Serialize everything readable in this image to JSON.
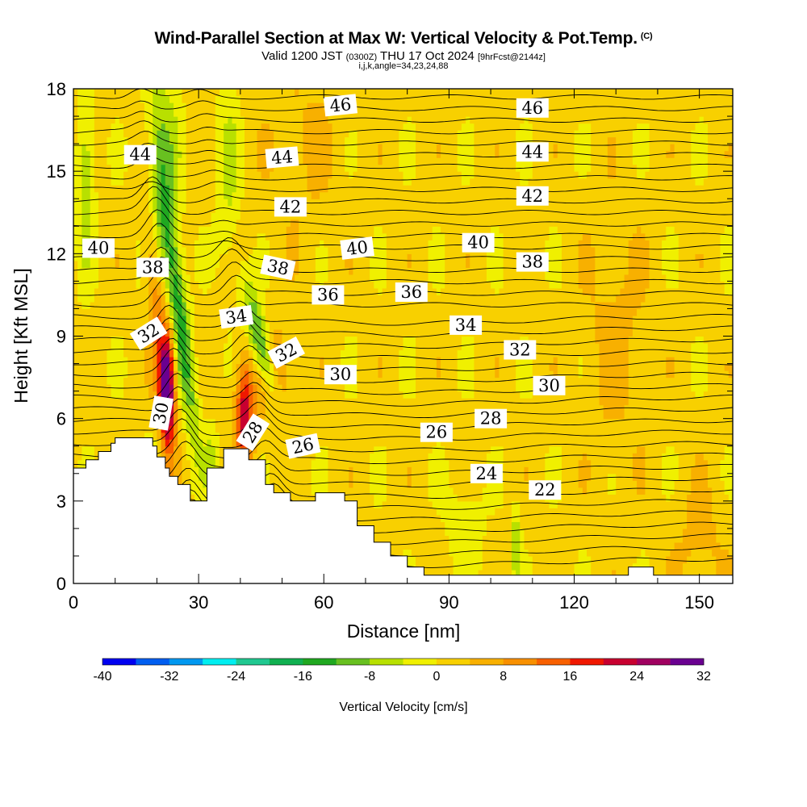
{
  "titles": {
    "main": "Wind-Parallel Section at Max W: Vertical Velocity & Pot.Temp.",
    "copyright": "(C)",
    "valid_a": "Valid 1200 JST ",
    "valid_b": "(0300Z)",
    "valid_c": " THU 17 Oct 2024 ",
    "valid_d": "[9hrFcst@2144z]",
    "indices": "i,j,k,angle=34,23,24,88"
  },
  "chart_data": {
    "type": "heatmap",
    "xlabel": "Distance [nm]",
    "ylabel": "Height [Kft MSL]",
    "xlim": [
      0,
      158
    ],
    "ylim": [
      0,
      18
    ],
    "xticks": [
      0,
      30,
      60,
      90,
      120,
      150
    ],
    "yticks": [
      0,
      3,
      6,
      9,
      12,
      15,
      18
    ],
    "colorbar": {
      "label": "Vertical Velocity [cm/s]",
      "ticks": [
        -40,
        -32,
        -24,
        -16,
        -8,
        0,
        8,
        16,
        24,
        32
      ],
      "bins": [
        -40,
        -36,
        -32,
        -28,
        -24,
        -20,
        -16,
        -12,
        -8,
        -4,
        0,
        4,
        8,
        12,
        16,
        20,
        24,
        28,
        32
      ],
      "colors": [
        "#0000f0",
        "#005ef0",
        "#0098f0",
        "#00eef0",
        "#20c890",
        "#10b050",
        "#20a820",
        "#68c020",
        "#b8e000",
        "#f0f000",
        "#f8d000",
        "#f8b000",
        "#f89000",
        "#f86000",
        "#f01800",
        "#c80030",
        "#a00060",
        "#6a0090"
      ]
    },
    "terrain_kft": [
      [
        0,
        4.2
      ],
      [
        3,
        4.2
      ],
      [
        3,
        4.5
      ],
      [
        6,
        4.5
      ],
      [
        6,
        4.8
      ],
      [
        9,
        4.8
      ],
      [
        9,
        5.1
      ],
      [
        10,
        5.1
      ],
      [
        10,
        5.3
      ],
      [
        19,
        5.3
      ],
      [
        19,
        5.0
      ],
      [
        20,
        5.0
      ],
      [
        20,
        4.6
      ],
      [
        22,
        4.6
      ],
      [
        22,
        4.2
      ],
      [
        23,
        4.2
      ],
      [
        23,
        3.9
      ],
      [
        25,
        3.9
      ],
      [
        25,
        3.6
      ],
      [
        28,
        3.6
      ],
      [
        28,
        3.0
      ],
      [
        32,
        3.0
      ],
      [
        32,
        4.2
      ],
      [
        36,
        4.2
      ],
      [
        36,
        4.9
      ],
      [
        42,
        4.9
      ],
      [
        42,
        4.5
      ],
      [
        46,
        4.5
      ],
      [
        46,
        3.6
      ],
      [
        48,
        3.6
      ],
      [
        48,
        3.3
      ],
      [
        52,
        3.3
      ],
      [
        52,
        3.0
      ],
      [
        58,
        3.0
      ],
      [
        58,
        3.3
      ],
      [
        65,
        3.3
      ],
      [
        65,
        3.0
      ],
      [
        68,
        3.0
      ],
      [
        68,
        2.1
      ],
      [
        72,
        2.1
      ],
      [
        72,
        1.5
      ],
      [
        76,
        1.5
      ],
      [
        76,
        1.0
      ],
      [
        80,
        1.0
      ],
      [
        80,
        0.6
      ],
      [
        84,
        0.6
      ],
      [
        84,
        0.3
      ],
      [
        88,
        0.3
      ],
      [
        88,
        0.3
      ],
      [
        133,
        0.3
      ],
      [
        133,
        0.6
      ],
      [
        139,
        0.6
      ],
      [
        139,
        0.3
      ],
      [
        158,
        0.3
      ]
    ],
    "isentrope_labels": [
      {
        "text": "46",
        "x": 64,
        "y": 17.4,
        "rot": -6
      },
      {
        "text": "46",
        "x": 110,
        "y": 17.3,
        "rot": 0
      },
      {
        "text": "44",
        "x": 16,
        "y": 15.6,
        "rot": 0
      },
      {
        "text": "44",
        "x": 50,
        "y": 15.5,
        "rot": -5
      },
      {
        "text": "44",
        "x": 110,
        "y": 15.7,
        "rot": 0
      },
      {
        "text": "42",
        "x": 52,
        "y": 13.7,
        "rot": 0
      },
      {
        "text": "42",
        "x": 110,
        "y": 14.1,
        "rot": 0
      },
      {
        "text": "40",
        "x": 6,
        "y": 12.2,
        "rot": 0
      },
      {
        "text": "40",
        "x": 68,
        "y": 12.2,
        "rot": -7
      },
      {
        "text": "40",
        "x": 97,
        "y": 12.4,
        "rot": 0
      },
      {
        "text": "38",
        "x": 19,
        "y": 11.5,
        "rot": 0
      },
      {
        "text": "38",
        "x": 49,
        "y": 11.5,
        "rot": 12
      },
      {
        "text": "38",
        "x": 110,
        "y": 11.7,
        "rot": 0
      },
      {
        "text": "36",
        "x": 61,
        "y": 10.5,
        "rot": 0
      },
      {
        "text": "36",
        "x": 81,
        "y": 10.6,
        "rot": 0
      },
      {
        "text": "34",
        "x": 39,
        "y": 9.7,
        "rot": -8
      },
      {
        "text": "34",
        "x": 94,
        "y": 9.4,
        "rot": 0
      },
      {
        "text": "32",
        "x": 18,
        "y": 9.1,
        "rot": -32
      },
      {
        "text": "32",
        "x": 51,
        "y": 8.4,
        "rot": -28
      },
      {
        "text": "32",
        "x": 107,
        "y": 8.5,
        "rot": 0
      },
      {
        "text": "30",
        "x": 64,
        "y": 7.6,
        "rot": 0
      },
      {
        "text": "30",
        "x": 114,
        "y": 7.2,
        "rot": 0
      },
      {
        "text": "30",
        "x": 21,
        "y": 6.2,
        "rot": -80
      },
      {
        "text": "28",
        "x": 43,
        "y": 5.5,
        "rot": -58
      },
      {
        "text": "28",
        "x": 100,
        "y": 6.0,
        "rot": 0
      },
      {
        "text": "26",
        "x": 55,
        "y": 5.0,
        "rot": -12
      },
      {
        "text": "26",
        "x": 87,
        "y": 5.5,
        "rot": 0
      },
      {
        "text": "24",
        "x": 99,
        "y": 4.0,
        "rot": 0
      },
      {
        "text": "22",
        "x": 113,
        "y": 3.4,
        "rot": 0
      }
    ]
  }
}
